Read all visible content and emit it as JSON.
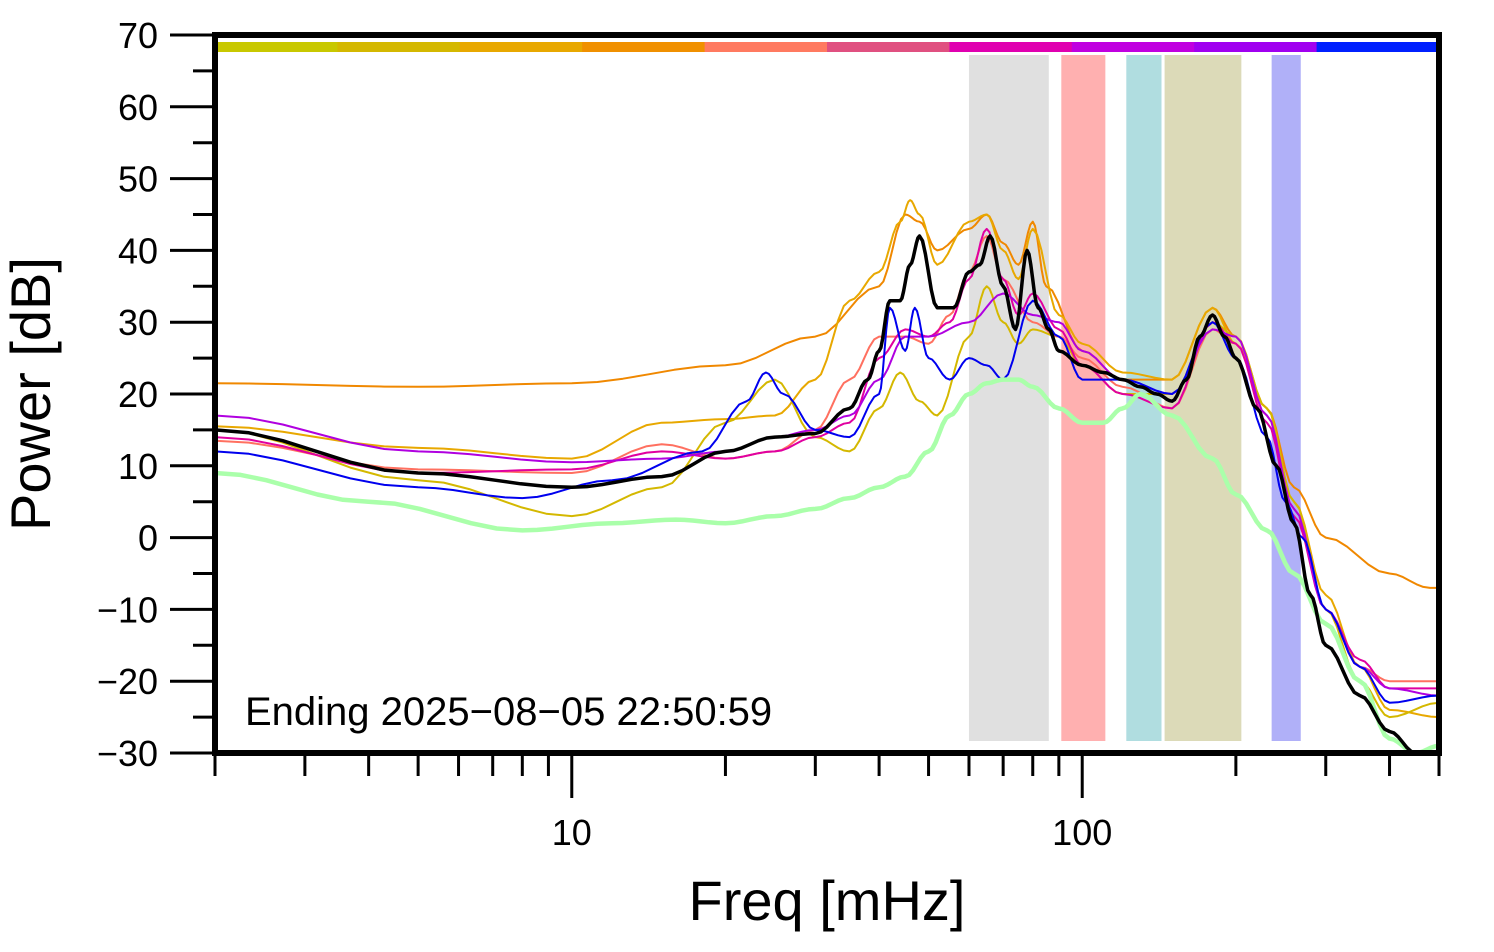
{
  "chart_data": {
    "type": "line",
    "title": "",
    "xlabel": "Freq [mHz]",
    "ylabel": "Power [dB]",
    "xscale": "log",
    "xlim": [
      2,
      500
    ],
    "ylim": [
      -30,
      70
    ],
    "grid": false,
    "x_major_ticks": [
      10,
      100
    ],
    "x_tick_labels": [
      "10",
      "100"
    ],
    "y_ticks": [
      -30,
      -20,
      -10,
      0,
      10,
      20,
      30,
      40,
      50,
      60,
      70
    ],
    "y_tick_labels": [
      "−30",
      "−20",
      "−10",
      "0",
      "10",
      "20",
      "30",
      "40",
      "50",
      "60",
      "70"
    ],
    "annotation": "Ending 2025−08−05 22:50:59",
    "color_strip": [
      "#c8c800",
      "#d4b800",
      "#e8a800",
      "#f09000",
      "#ff7a60",
      "#e05080",
      "#e000b0",
      "#c000e0",
      "#a000f0",
      "#0020ff"
    ],
    "bands": [
      {
        "x0": 60,
        "x1": 86,
        "color": "#e0e0e0"
      },
      {
        "x0": 91,
        "x1": 111,
        "color": "#ffb0b0"
      },
      {
        "x0": 122,
        "x1": 143,
        "color": "#b0dde0"
      },
      {
        "x0": 145,
        "x1": 205,
        "color": "#dcdab8"
      },
      {
        "x0": 235,
        "x1": 268,
        "color": "#b0b0f8"
      }
    ],
    "series": [
      {
        "color": "#f08800",
        "width": 2,
        "x": [
          2,
          5,
          10,
          20,
          30,
          40,
          45,
          48,
          52,
          60,
          65,
          70,
          75,
          80,
          85,
          100,
          120,
          150,
          180,
          200,
          230,
          260,
          300,
          400,
          480,
          500
        ],
        "y": [
          21.5,
          21,
          21.5,
          24,
          28,
          35,
          45,
          44,
          40,
          43,
          45,
          41,
          38,
          44,
          35,
          26,
          22,
          22,
          32,
          28,
          18,
          7,
          0,
          -5,
          -7,
          -7
        ]
      },
      {
        "color": "#e8a800",
        "width": 2,
        "x": [
          2,
          5,
          10,
          15,
          20,
          25,
          30,
          35,
          40,
          44,
          46,
          48,
          52,
          60,
          65,
          70,
          75,
          80,
          90,
          100,
          120,
          150,
          180,
          200,
          230,
          260,
          300,
          350,
          400,
          500
        ],
        "y": [
          15.5,
          12.5,
          11,
          16,
          16.5,
          17,
          22,
          33,
          37,
          44,
          47,
          45,
          38,
          44,
          45,
          40,
          36,
          43,
          31,
          27,
          23,
          22,
          32,
          27,
          18,
          5,
          -8,
          -18,
          -24,
          -25
        ]
      },
      {
        "color": "#d4b800",
        "width": 2,
        "x": [
          2,
          5,
          10,
          15,
          20,
          25,
          30,
          35,
          40,
          44,
          48,
          52,
          60,
          65,
          70,
          75,
          80,
          90,
          100,
          120,
          150,
          180,
          200,
          230,
          260,
          300,
          350,
          400,
          500
        ],
        "y": [
          15,
          8,
          3,
          7,
          16,
          22,
          14,
          12,
          18,
          23,
          19,
          17,
          28,
          35,
          30,
          27,
          29,
          28,
          24,
          20,
          20,
          30,
          28,
          18,
          5,
          -10,
          -20,
          -25,
          -23
        ]
      },
      {
        "color": "#ff7060",
        "width": 2,
        "x": [
          2,
          5,
          10,
          15,
          20,
          25,
          30,
          35,
          40,
          45,
          50,
          55,
          60,
          65,
          70,
          80,
          90,
          100,
          120,
          150,
          180,
          200,
          230,
          260,
          300,
          350,
          400,
          500
        ],
        "y": [
          13.5,
          9.5,
          9,
          13,
          11,
          12,
          15,
          22,
          28,
          28,
          27,
          31,
          37,
          42,
          36,
          30,
          28,
          25,
          21,
          18,
          29,
          27,
          17,
          4,
          -10,
          -18,
          -20,
          -20
        ]
      },
      {
        "color": "#e000a0",
        "width": 2,
        "x": [
          2,
          5,
          10,
          15,
          20,
          25,
          30,
          35,
          40,
          45,
          50,
          55,
          60,
          65,
          70,
          75,
          80,
          90,
          100,
          120,
          150,
          180,
          200,
          230,
          260,
          300,
          350,
          400,
          500
        ],
        "y": [
          14,
          9,
          9.5,
          12,
          11,
          12,
          14,
          16,
          25,
          29,
          28,
          30,
          36,
          43,
          36,
          31,
          34,
          29,
          24,
          20,
          18,
          30,
          27,
          16,
          3,
          -10,
          -17,
          -21,
          -21
        ]
      },
      {
        "color": "#b000e0",
        "width": 2,
        "x": [
          2,
          5,
          10,
          15,
          20,
          25,
          30,
          35,
          40,
          45,
          50,
          60,
          70,
          80,
          90,
          100,
          120,
          150,
          180,
          200,
          230,
          260,
          300,
          350,
          400,
          500
        ],
        "y": [
          17,
          12,
          10.5,
          11,
          12,
          14,
          15,
          17,
          22,
          28,
          28,
          30,
          34,
          31,
          30,
          26,
          22,
          20,
          29,
          28,
          17,
          4,
          -10,
          -18,
          -21,
          -22
        ]
      },
      {
        "color": "#0000ee",
        "width": 2,
        "x": [
          2,
          5,
          8,
          12,
          18,
          22,
          24,
          26,
          30,
          35,
          40,
          42,
          45,
          47,
          50,
          55,
          60,
          65,
          70,
          80,
          90,
          100,
          120,
          150,
          180,
          200,
          230,
          250,
          270,
          300,
          350,
          400,
          500
        ],
        "y": [
          12,
          7,
          5.5,
          8,
          12,
          19,
          23,
          20,
          15,
          14,
          20,
          32,
          26,
          32,
          25,
          22,
          25,
          24,
          22,
          33,
          28,
          22,
          22,
          20,
          30,
          25,
          14,
          5,
          0,
          -10,
          -18,
          -23,
          -22
        ]
      },
      {
        "color": "#aaffaa",
        "width": 4.5,
        "x": [
          2,
          4,
          8,
          12,
          16,
          20,
          25,
          30,
          35,
          40,
          45,
          50,
          55,
          60,
          65,
          70,
          75,
          80,
          90,
          100,
          110,
          120,
          130,
          150,
          180,
          200,
          230,
          260,
          300,
          350,
          400,
          450,
          500
        ],
        "y": [
          9,
          5,
          1,
          2,
          2.5,
          2,
          3,
          4,
          5.5,
          7,
          8.5,
          12,
          17,
          20,
          21.5,
          22,
          22,
          21,
          18,
          16,
          16,
          18,
          20,
          17,
          11,
          6,
          1,
          -5,
          -12,
          -20,
          -28,
          -30,
          -29
        ]
      },
      {
        "color": "#000000",
        "width": 3.5,
        "x": [
          2,
          5,
          10,
          15,
          20,
          25,
          30,
          35,
          38,
          40,
          42,
          44,
          46,
          48,
          52,
          56,
          60,
          63,
          66,
          70,
          74,
          78,
          82,
          86,
          90,
          100,
          110,
          120,
          130,
          140,
          150,
          160,
          170,
          180,
          190,
          200,
          220,
          240,
          260,
          280,
          300,
          350,
          400,
          450,
          500
        ],
        "y": [
          15,
          9,
          7,
          8.5,
          12,
          14,
          14.5,
          18,
          22,
          26,
          33,
          33,
          38,
          42,
          32,
          32,
          37,
          38,
          42,
          35,
          29,
          40,
          32,
          29,
          26,
          24,
          23,
          22,
          21,
          20,
          19,
          22,
          28,
          31,
          28,
          25,
          18,
          10,
          2,
          -8,
          -15,
          -22,
          -27,
          -30,
          -30
        ]
      }
    ]
  }
}
